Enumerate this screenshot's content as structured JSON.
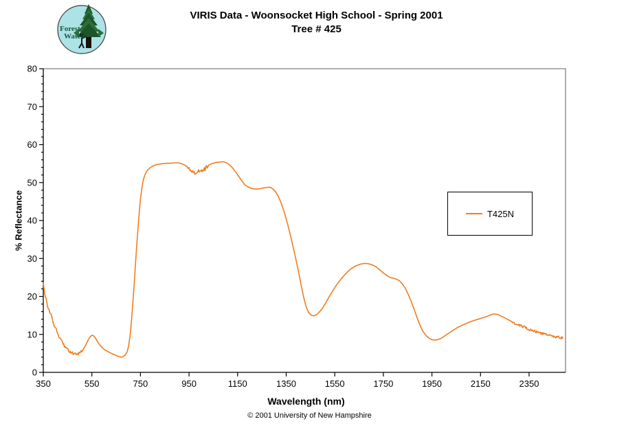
{
  "header": {
    "title_line1": "VIRIS Data - Woonsocket High School - Spring 2001",
    "title_line2": "Tree # 425",
    "logo": {
      "line1": "Forest",
      "line2": "Watch",
      "bg_color": "#ade2e6",
      "tree_color": "#2c6e38",
      "tree_dark_color": "#1d5429",
      "text_color": "#145c3a"
    }
  },
  "footer": {
    "copyright": "© 2001 University of New Hampshire"
  },
  "chart_data": {
    "type": "line",
    "title": "VIRIS Data - Woonsocket High School - Spring 2001 / Tree # 425",
    "xlabel": "Wavelength (nm)",
    "ylabel": "% Reflectance",
    "xlim": [
      350,
      2500
    ],
    "ylim": [
      0,
      80
    ],
    "x_axis": {
      "ticks": [
        350,
        550,
        750,
        950,
        1150,
        1350,
        1550,
        1750,
        1950,
        2150,
        2350
      ]
    },
    "y_axis": {
      "major_step": 10,
      "minor_step": 2
    },
    "grid": false,
    "plot_border_color": "#808080",
    "axis_color": "#000000",
    "legend": {
      "position": "middle-right",
      "entries": [
        {
          "label": "T425N",
          "color": "#f07c1e"
        }
      ]
    },
    "series": [
      {
        "name": "T425N",
        "color": "#f07c1e",
        "points": [
          [
            350,
            23.5
          ],
          [
            353,
            22.2
          ],
          [
            356,
            21.0
          ],
          [
            360,
            19.6
          ],
          [
            365,
            18.2
          ],
          [
            370,
            17.2
          ],
          [
            375,
            16.2
          ],
          [
            380,
            15.4
          ],
          [
            385,
            14.4
          ],
          [
            390,
            13.4
          ],
          [
            395,
            12.4
          ],
          [
            400,
            11.6
          ],
          [
            410,
            10.1
          ],
          [
            420,
            8.8
          ],
          [
            430,
            7.6
          ],
          [
            440,
            6.7
          ],
          [
            450,
            6.0
          ],
          [
            460,
            5.5
          ],
          [
            470,
            5.1
          ],
          [
            480,
            4.9
          ],
          [
            490,
            4.9
          ],
          [
            500,
            5.1
          ],
          [
            510,
            5.6
          ],
          [
            520,
            6.6
          ],
          [
            530,
            7.9
          ],
          [
            540,
            9.1
          ],
          [
            550,
            9.8
          ],
          [
            558,
            9.6
          ],
          [
            565,
            9.0
          ],
          [
            575,
            7.9
          ],
          [
            585,
            7.0
          ],
          [
            600,
            6.1
          ],
          [
            615,
            5.5
          ],
          [
            630,
            5.0
          ],
          [
            645,
            4.6
          ],
          [
            655,
            4.3
          ],
          [
            665,
            4.1
          ],
          [
            672,
            4.0
          ],
          [
            680,
            4.2
          ],
          [
            688,
            4.6
          ],
          [
            695,
            5.4
          ],
          [
            701,
            6.8
          ],
          [
            707,
            9.5
          ],
          [
            713,
            13.5
          ],
          [
            719,
            18.5
          ],
          [
            725,
            24.0
          ],
          [
            731,
            30.0
          ],
          [
            737,
            35.5
          ],
          [
            743,
            40.5
          ],
          [
            749,
            45.0
          ],
          [
            755,
            48.2
          ],
          [
            761,
            50.5
          ],
          [
            768,
            52.0
          ],
          [
            775,
            52.9
          ],
          [
            783,
            53.5
          ],
          [
            792,
            54.0
          ],
          [
            802,
            54.4
          ],
          [
            815,
            54.7
          ],
          [
            830,
            54.9
          ],
          [
            845,
            55.0
          ],
          [
            860,
            55.1
          ],
          [
            875,
            55.1
          ],
          [
            890,
            55.2
          ],
          [
            905,
            55.2
          ],
          [
            918,
            55.0
          ],
          [
            930,
            54.7
          ],
          [
            940,
            54.2
          ],
          [
            950,
            53.6
          ],
          [
            960,
            53.0
          ],
          [
            970,
            52.6
          ],
          [
            978,
            52.3
          ],
          [
            986,
            52.6
          ],
          [
            995,
            53.0
          ],
          [
            1005,
            53.4
          ],
          [
            1015,
            53.9
          ],
          [
            1030,
            54.6
          ],
          [
            1045,
            55.0
          ],
          [
            1060,
            55.3
          ],
          [
            1075,
            55.4
          ],
          [
            1090,
            55.5
          ],
          [
            1105,
            55.2
          ],
          [
            1118,
            54.6
          ],
          [
            1130,
            53.8
          ],
          [
            1142,
            52.8
          ],
          [
            1155,
            51.6
          ],
          [
            1168,
            50.4
          ],
          [
            1180,
            49.4
          ],
          [
            1192,
            48.9
          ],
          [
            1205,
            48.5
          ],
          [
            1218,
            48.3
          ],
          [
            1232,
            48.3
          ],
          [
            1245,
            48.4
          ],
          [
            1258,
            48.6
          ],
          [
            1270,
            48.7
          ],
          [
            1282,
            48.8
          ],
          [
            1294,
            48.4
          ],
          [
            1306,
            47.6
          ],
          [
            1318,
            46.3
          ],
          [
            1330,
            44.5
          ],
          [
            1342,
            42.2
          ],
          [
            1354,
            39.5
          ],
          [
            1366,
            36.5
          ],
          [
            1378,
            33.2
          ],
          [
            1390,
            29.8
          ],
          [
            1402,
            26.2
          ],
          [
            1412,
            22.8
          ],
          [
            1422,
            19.8
          ],
          [
            1432,
            17.3
          ],
          [
            1442,
            15.8
          ],
          [
            1452,
            15.1
          ],
          [
            1462,
            14.9
          ],
          [
            1472,
            15.1
          ],
          [
            1482,
            15.6
          ],
          [
            1495,
            16.5
          ],
          [
            1510,
            18.0
          ],
          [
            1525,
            19.7
          ],
          [
            1540,
            21.3
          ],
          [
            1558,
            23.1
          ],
          [
            1576,
            24.6
          ],
          [
            1595,
            26.0
          ],
          [
            1615,
            27.2
          ],
          [
            1635,
            28.0
          ],
          [
            1655,
            28.5
          ],
          [
            1672,
            28.7
          ],
          [
            1690,
            28.6
          ],
          [
            1705,
            28.3
          ],
          [
            1720,
            27.8
          ],
          [
            1735,
            27.0
          ],
          [
            1750,
            26.2
          ],
          [
            1765,
            25.5
          ],
          [
            1778,
            25.0
          ],
          [
            1790,
            24.8
          ],
          [
            1803,
            24.6
          ],
          [
            1815,
            24.2
          ],
          [
            1827,
            23.4
          ],
          [
            1840,
            22.2
          ],
          [
            1852,
            20.6
          ],
          [
            1865,
            18.6
          ],
          [
            1878,
            16.4
          ],
          [
            1890,
            14.2
          ],
          [
            1902,
            12.2
          ],
          [
            1914,
            10.7
          ],
          [
            1926,
            9.7
          ],
          [
            1938,
            9.0
          ],
          [
            1950,
            8.6
          ],
          [
            1962,
            8.5
          ],
          [
            1974,
            8.6
          ],
          [
            1986,
            8.9
          ],
          [
            1998,
            9.4
          ],
          [
            2012,
            10.0
          ],
          [
            2026,
            10.6
          ],
          [
            2040,
            11.2
          ],
          [
            2055,
            11.8
          ],
          [
            2070,
            12.3
          ],
          [
            2085,
            12.7
          ],
          [
            2100,
            13.1
          ],
          [
            2115,
            13.5
          ],
          [
            2130,
            13.8
          ],
          [
            2145,
            14.1
          ],
          [
            2160,
            14.4
          ],
          [
            2175,
            14.7
          ],
          [
            2190,
            15.1
          ],
          [
            2205,
            15.4
          ],
          [
            2218,
            15.3
          ],
          [
            2230,
            15.0
          ],
          [
            2242,
            14.6
          ],
          [
            2254,
            14.2
          ],
          [
            2266,
            13.8
          ],
          [
            2278,
            13.4
          ],
          [
            2290,
            13.0
          ],
          [
            2302,
            12.7
          ],
          [
            2314,
            12.4
          ],
          [
            2326,
            12.0
          ],
          [
            2338,
            11.6
          ],
          [
            2350,
            11.2
          ],
          [
            2362,
            11.0
          ],
          [
            2374,
            10.8
          ],
          [
            2386,
            10.5
          ],
          [
            2398,
            10.3
          ],
          [
            2410,
            10.1
          ],
          [
            2422,
            9.9
          ],
          [
            2434,
            9.7
          ],
          [
            2446,
            9.6
          ],
          [
            2458,
            9.4
          ],
          [
            2470,
            9.3
          ],
          [
            2481,
            9.2
          ],
          [
            2491,
            9.1
          ]
        ],
        "noise_regions": [
          {
            "from": 350,
            "to": 520,
            "amp": 0.45
          },
          {
            "from": 940,
            "to": 975,
            "amp": 0.4
          },
          {
            "from": 978,
            "to": 1030,
            "amp": 0.9
          },
          {
            "from": 2280,
            "to": 2491,
            "amp": 0.35
          }
        ]
      }
    ]
  }
}
